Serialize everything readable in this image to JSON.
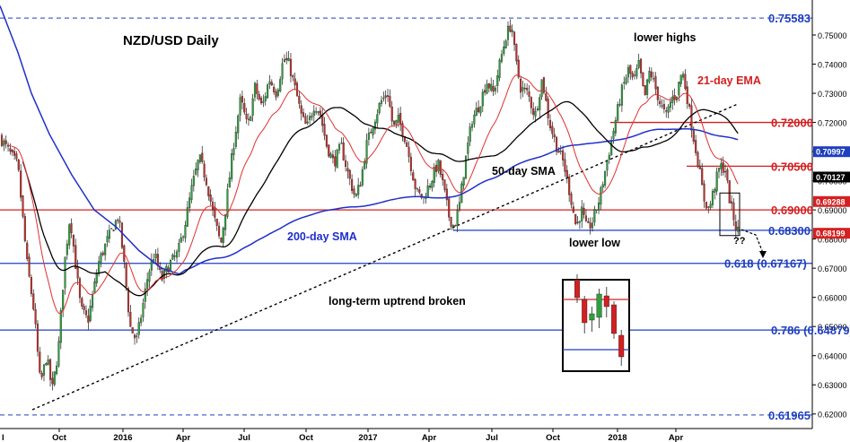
{
  "chart_data": {
    "type": "candlestick",
    "title": "NZD/USD Daily",
    "ylim": [
      0.615,
      0.762
    ],
    "y_ticks": [
      0.62,
      0.63,
      0.64,
      0.65,
      0.66,
      0.67,
      0.68,
      0.69,
      0.7,
      0.71,
      0.72,
      0.73,
      0.74,
      0.75
    ],
    "y_tick_labels": [
      "0.62000",
      "0.63000",
      "0.64000",
      "0.65000",
      "0.66000",
      "0.67000",
      "0.68000",
      "0.69000",
      "0.70000",
      "0.71000",
      "0.72000",
      "0.73000",
      "0.74000",
      "0.75000"
    ],
    "x_ticks": [
      "Oct",
      "2016",
      "Apr",
      "Jul",
      "Oct",
      "2017",
      "Apr",
      "Jul",
      "Oct",
      "2018",
      "Apr"
    ],
    "x_start_label": "l",
    "current_price_badges": [
      {
        "label": "0.70997",
        "value": 0.70997,
        "color": "#1f3fbf"
      },
      {
        "label": "0.70127",
        "value": 0.70127,
        "color": "#000000"
      },
      {
        "label": "0.69288",
        "value": 0.69288,
        "color": "#d42020"
      },
      {
        "label": "0.68199",
        "value": 0.68199,
        "color": "#d42020"
      }
    ],
    "horizontal_levels": [
      {
        "label": "0.75583",
        "value": 0.75583,
        "color": "#1f3fbf",
        "style": "dashed"
      },
      {
        "label": "0.72000",
        "value": 0.72,
        "color": "#d42020",
        "style": "solid",
        "segment": "right"
      },
      {
        "label": "0.70500",
        "value": 0.705,
        "color": "#d42020",
        "style": "solid",
        "segment": "right"
      },
      {
        "label": "0.69000",
        "value": 0.69,
        "color": "#d42020",
        "style": "solid"
      },
      {
        "label": "0.68300",
        "value": 0.683,
        "color": "#1f3fbf",
        "style": "solid",
        "segment": "right"
      },
      {
        "label": "0.618 (0.67167)",
        "value": 0.67167,
        "color": "#1f3fbf",
        "style": "solid"
      },
      {
        "label": "0.786 (0.64879)",
        "value": 0.64879,
        "color": "#1f3fbf",
        "style": "solid"
      },
      {
        "label": "0.61965",
        "value": 0.61965,
        "color": "#1f3fbf",
        "style": "dashed"
      }
    ],
    "annotations": [
      "lower highs",
      "21-day EMA",
      "50-day SMA",
      "200-day SMA",
      "lower low",
      "long-term uptrend broken",
      "??"
    ],
    "series": [
      {
        "name": "200-day SMA",
        "color": "#1f2fcc"
      },
      {
        "name": "50-day SMA",
        "color": "#000000"
      },
      {
        "name": "21-day EMA",
        "color": "#e03030"
      }
    ],
    "price_path": [
      [
        0,
        0.715
      ],
      [
        20,
        0.705
      ],
      [
        30,
        0.672
      ],
      [
        38,
        0.655
      ],
      [
        45,
        0.63
      ],
      [
        52,
        0.64
      ],
      [
        58,
        0.628
      ],
      [
        65,
        0.642
      ],
      [
        72,
        0.672
      ],
      [
        78,
        0.688
      ],
      [
        84,
        0.672
      ],
      [
        90,
        0.656
      ],
      [
        98,
        0.652
      ],
      [
        104,
        0.662
      ],
      [
        110,
        0.672
      ],
      [
        120,
        0.68
      ],
      [
        132,
        0.688
      ],
      [
        138,
        0.672
      ],
      [
        145,
        0.65
      ],
      [
        152,
        0.645
      ],
      [
        158,
        0.655
      ],
      [
        165,
        0.668
      ],
      [
        172,
        0.675
      ],
      [
        180,
        0.666
      ],
      [
        190,
        0.672
      ],
      [
        198,
        0.675
      ],
      [
        206,
        0.685
      ],
      [
        214,
        0.698
      ],
      [
        222,
        0.708
      ],
      [
        230,
        0.7
      ],
      [
        238,
        0.688
      ],
      [
        246,
        0.678
      ],
      [
        252,
        0.692
      ],
      [
        260,
        0.712
      ],
      [
        268,
        0.728
      ],
      [
        276,
        0.718
      ],
      [
        284,
        0.732
      ],
      [
        292,
        0.725
      ],
      [
        300,
        0.735
      ],
      [
        308,
        0.73
      ],
      [
        316,
        0.742
      ],
      [
        322,
        0.74
      ],
      [
        330,
        0.73
      ],
      [
        336,
        0.722
      ],
      [
        342,
        0.718
      ],
      [
        350,
        0.726
      ],
      [
        356,
        0.724
      ],
      [
        364,
        0.712
      ],
      [
        372,
        0.706
      ],
      [
        380,
        0.712
      ],
      [
        388,
        0.702
      ],
      [
        396,
        0.694
      ],
      [
        402,
        0.7
      ],
      [
        408,
        0.712
      ],
      [
        416,
        0.72
      ],
      [
        424,
        0.727
      ],
      [
        432,
        0.73
      ],
      [
        438,
        0.718
      ],
      [
        444,
        0.721
      ],
      [
        452,
        0.714
      ],
      [
        458,
        0.705
      ],
      [
        464,
        0.696
      ],
      [
        472,
        0.694
      ],
      [
        480,
        0.7
      ],
      [
        488,
        0.706
      ],
      [
        494,
        0.698
      ],
      [
        500,
        0.688
      ],
      [
        506,
        0.684
      ],
      [
        512,
        0.692
      ],
      [
        518,
        0.706
      ],
      [
        526,
        0.721
      ],
      [
        534,
        0.726
      ],
      [
        542,
        0.734
      ],
      [
        550,
        0.73
      ],
      [
        558,
        0.742
      ],
      [
        564,
        0.75
      ],
      [
        570,
        0.754
      ],
      [
        574,
        0.742
      ],
      [
        580,
        0.732
      ],
      [
        588,
        0.73
      ],
      [
        596,
        0.722
      ],
      [
        604,
        0.735
      ],
      [
        612,
        0.72
      ],
      [
        620,
        0.712
      ],
      [
        628,
        0.706
      ],
      [
        636,
        0.694
      ],
      [
        642,
        0.684
      ],
      [
        648,
        0.69
      ],
      [
        654,
        0.683
      ],
      [
        660,
        0.686
      ],
      [
        668,
        0.694
      ],
      [
        676,
        0.706
      ],
      [
        684,
        0.718
      ],
      [
        692,
        0.73
      ],
      [
        700,
        0.738
      ],
      [
        706,
        0.734
      ],
      [
        712,
        0.74
      ],
      [
        718,
        0.728
      ],
      [
        724,
        0.738
      ],
      [
        730,
        0.732
      ],
      [
        736,
        0.726
      ],
      [
        742,
        0.722
      ],
      [
        748,
        0.728
      ],
      [
        754,
        0.73
      ],
      [
        760,
        0.738
      ],
      [
        766,
        0.728
      ],
      [
        772,
        0.716
      ],
      [
        778,
        0.706
      ],
      [
        784,
        0.694
      ],
      [
        790,
        0.69
      ],
      [
        796,
        0.698
      ],
      [
        802,
        0.705
      ],
      [
        808,
        0.704
      ],
      [
        812,
        0.695
      ],
      [
        816,
        0.689
      ],
      [
        820,
        0.684
      ],
      [
        824,
        0.682
      ]
    ]
  }
}
